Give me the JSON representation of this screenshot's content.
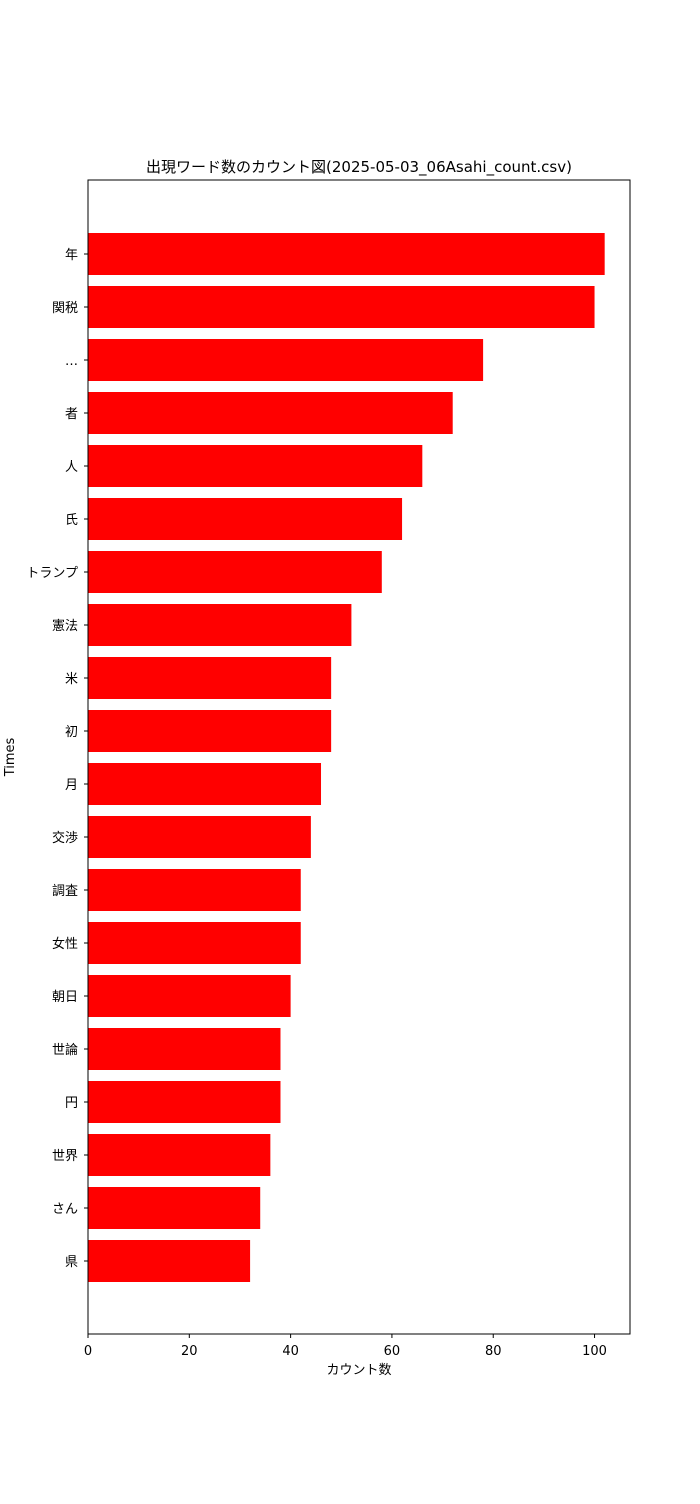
{
  "chart_data": {
    "type": "bar",
    "orientation": "horizontal",
    "title": "出現ワード数のカウント図(2025-05-03_06Asahi_count.csv)",
    "xlabel": "カウント数",
    "ylabel": "Times",
    "xlim": [
      0,
      107
    ],
    "xticks": [
      0,
      20,
      40,
      60,
      80,
      100
    ],
    "grid": false,
    "bar_color": "#ff0000",
    "categories": [
      "年",
      "関税",
      "…",
      "者",
      "人",
      "氏",
      "トランプ",
      "憲法",
      "米",
      "初",
      "月",
      "交渉",
      "調査",
      "女性",
      "朝日",
      "世論",
      "円",
      "世界",
      "さん",
      "県"
    ],
    "values": [
      102,
      100,
      78,
      72,
      66,
      62,
      58,
      52,
      48,
      48,
      46,
      44,
      42,
      42,
      40,
      38,
      38,
      36,
      34,
      32
    ]
  }
}
